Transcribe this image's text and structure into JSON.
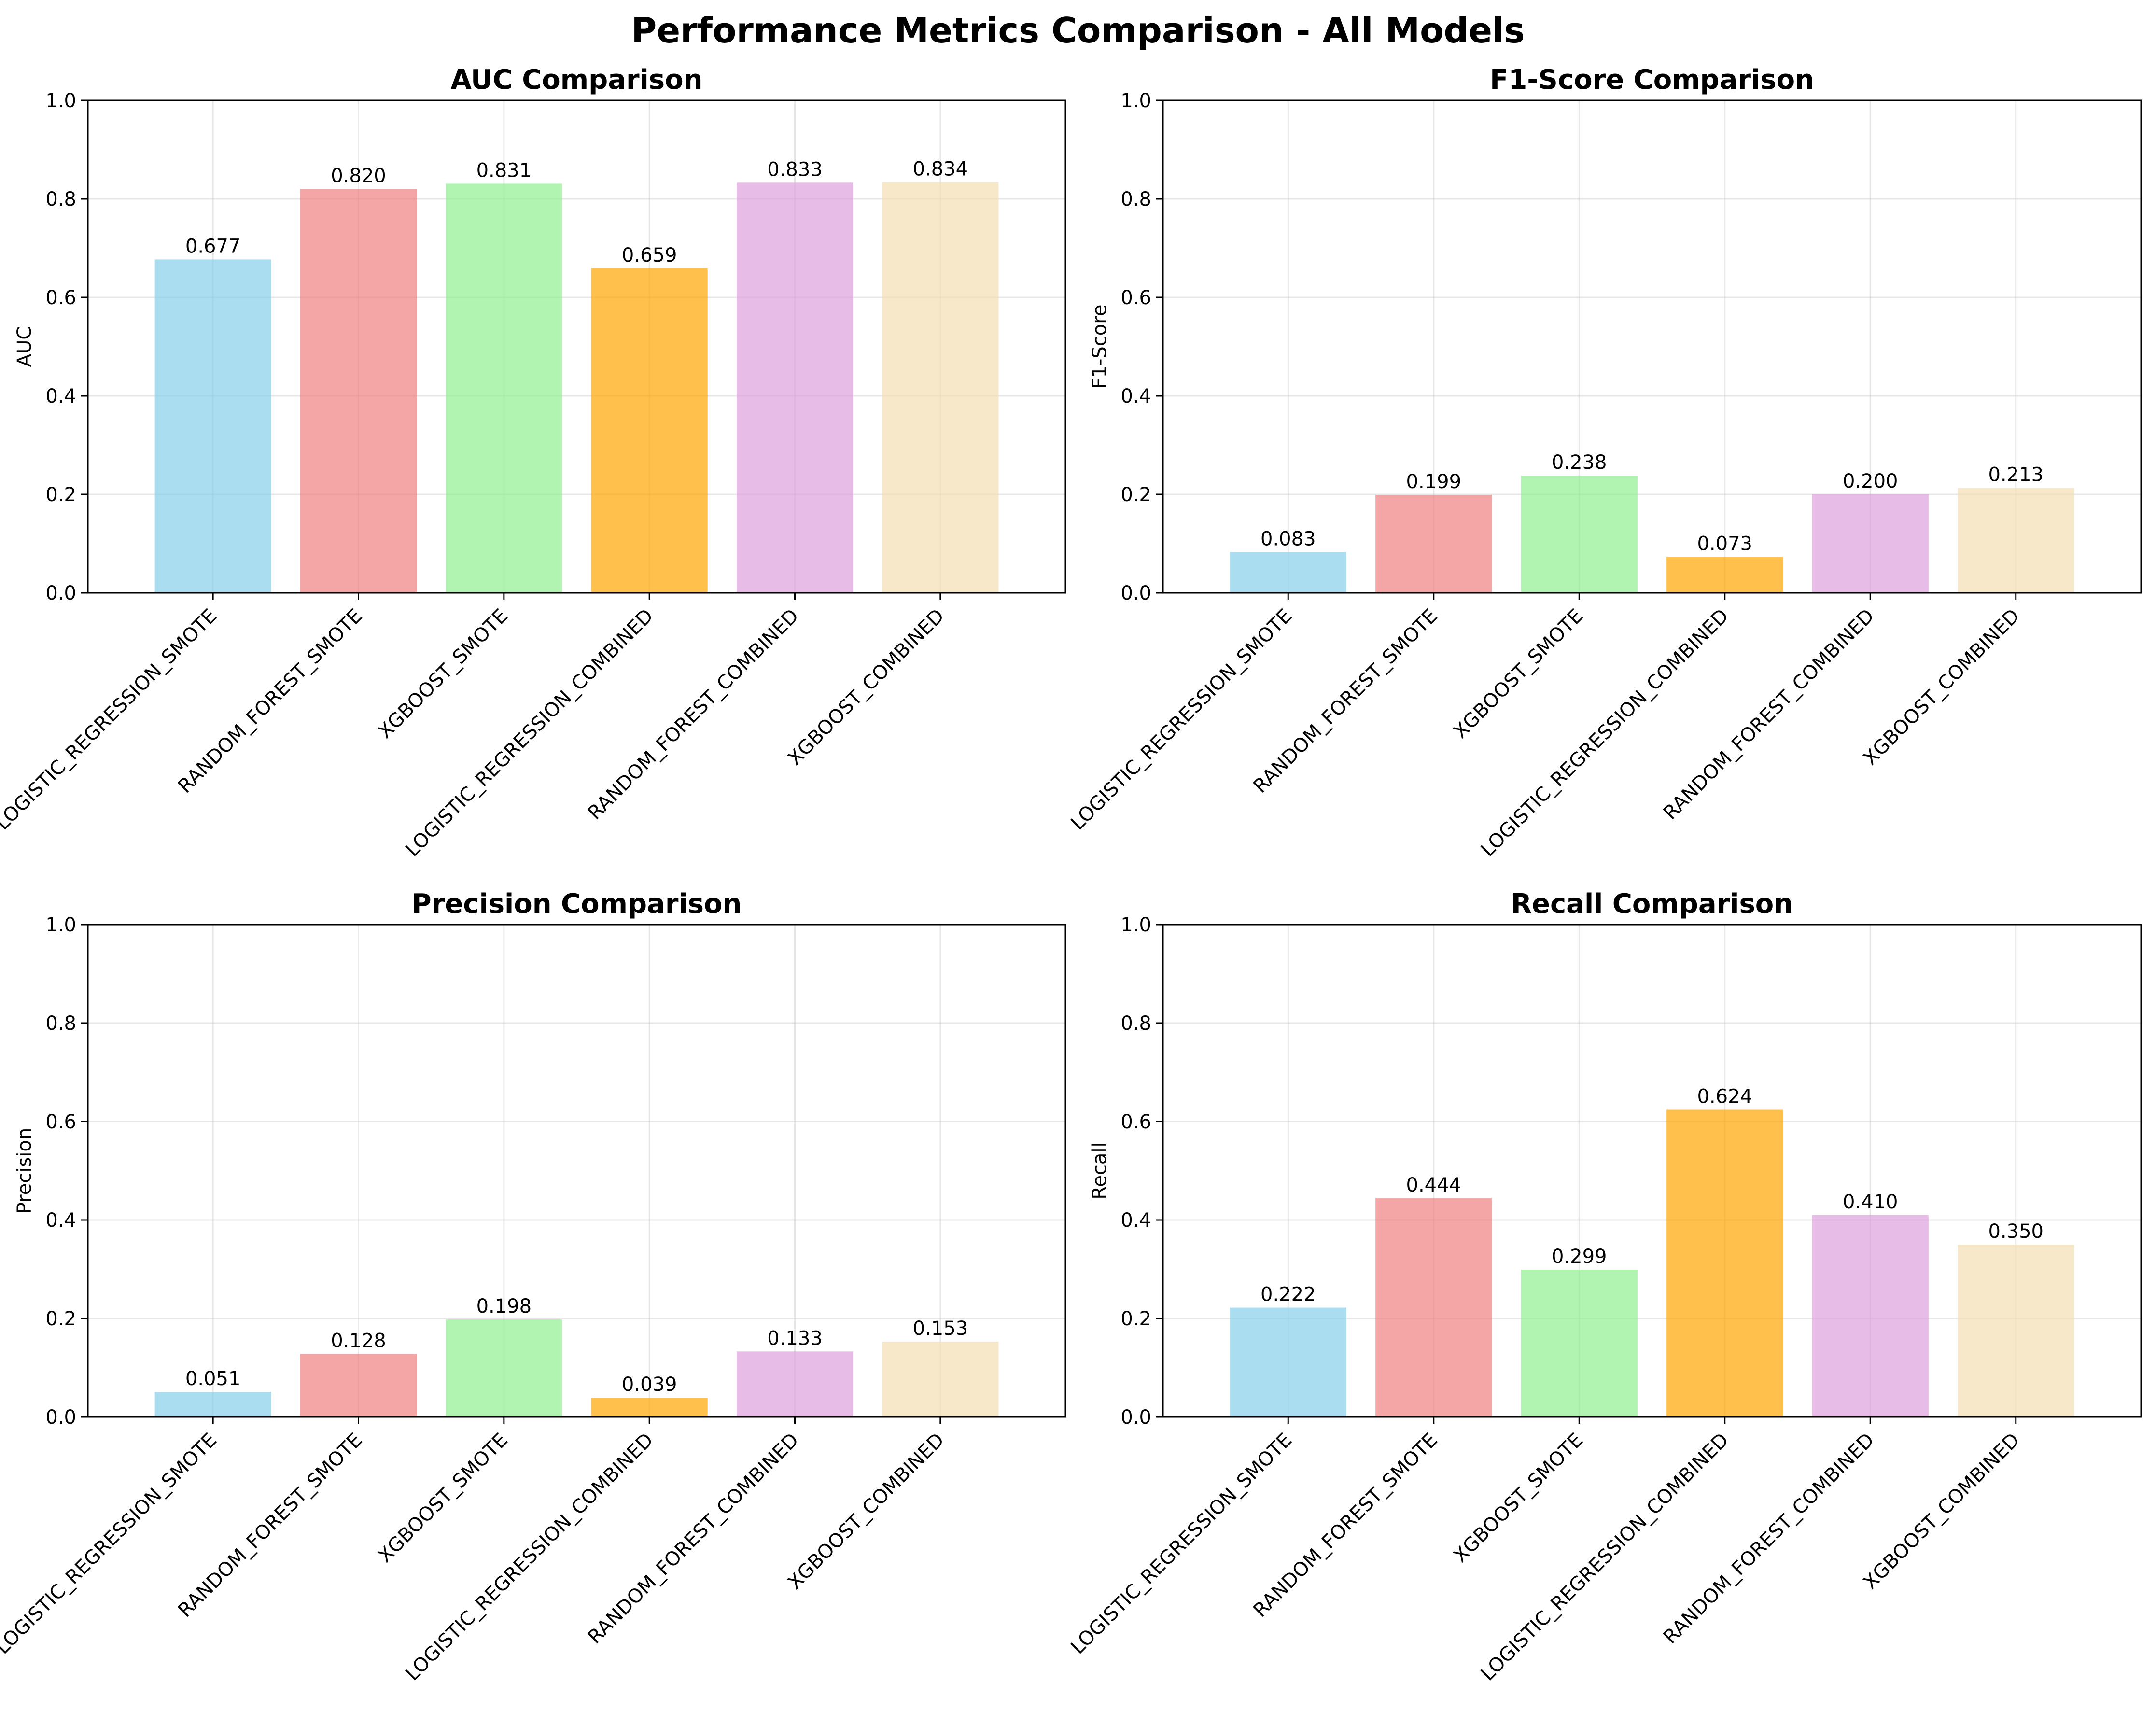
{
  "figure": {
    "title": "Performance Metrics Comparison - All Models"
  },
  "chart_data": [
    {
      "type": "bar",
      "title": "AUC Comparison",
      "xlabel": "",
      "ylabel": "AUC",
      "ylim": [
        0,
        1.0
      ],
      "yticks": [
        "0.0",
        "0.2",
        "0.4",
        "0.6",
        "0.8",
        "1.0"
      ],
      "grid": true,
      "categories": [
        "LOGISTIC_REGRESSION_SMOTE",
        "RANDOM_FOREST_SMOTE",
        "XGBOOST_SMOTE",
        "LOGISTIC_REGRESSION_COMBINED",
        "RANDOM_FOREST_COMBINED",
        "XGBOOST_COMBINED"
      ],
      "values": [
        0.677,
        0.82,
        0.831,
        0.659,
        0.833,
        0.834
      ],
      "data_labels": [
        "0.677",
        "0.820",
        "0.831",
        "0.659",
        "0.833",
        "0.834"
      ]
    },
    {
      "type": "bar",
      "title": "F1-Score Comparison",
      "xlabel": "",
      "ylabel": "F1-Score",
      "ylim": [
        0,
        1.0
      ],
      "yticks": [
        "0.0",
        "0.2",
        "0.4",
        "0.6",
        "0.8",
        "1.0"
      ],
      "grid": true,
      "categories": [
        "LOGISTIC_REGRESSION_SMOTE",
        "RANDOM_FOREST_SMOTE",
        "XGBOOST_SMOTE",
        "LOGISTIC_REGRESSION_COMBINED",
        "RANDOM_FOREST_COMBINED",
        "XGBOOST_COMBINED"
      ],
      "values": [
        0.083,
        0.199,
        0.238,
        0.073,
        0.2,
        0.213
      ],
      "data_labels": [
        "0.083",
        "0.199",
        "0.238",
        "0.073",
        "0.200",
        "0.213"
      ]
    },
    {
      "type": "bar",
      "title": "Precision Comparison",
      "xlabel": "",
      "ylabel": "Precision",
      "ylim": [
        0,
        1.0
      ],
      "yticks": [
        "0.0",
        "0.2",
        "0.4",
        "0.6",
        "0.8",
        "1.0"
      ],
      "grid": true,
      "categories": [
        "LOGISTIC_REGRESSION_SMOTE",
        "RANDOM_FOREST_SMOTE",
        "XGBOOST_SMOTE",
        "LOGISTIC_REGRESSION_COMBINED",
        "RANDOM_FOREST_COMBINED",
        "XGBOOST_COMBINED"
      ],
      "values": [
        0.051,
        0.128,
        0.198,
        0.039,
        0.133,
        0.153
      ],
      "data_labels": [
        "0.051",
        "0.128",
        "0.198",
        "0.039",
        "0.133",
        "0.153"
      ]
    },
    {
      "type": "bar",
      "title": "Recall Comparison",
      "xlabel": "",
      "ylabel": "Recall",
      "ylim": [
        0,
        1.0
      ],
      "yticks": [
        "0.0",
        "0.2",
        "0.4",
        "0.6",
        "0.8",
        "1.0"
      ],
      "grid": true,
      "categories": [
        "LOGISTIC_REGRESSION_SMOTE",
        "RANDOM_FOREST_SMOTE",
        "XGBOOST_SMOTE",
        "LOGISTIC_REGRESSION_COMBINED",
        "RANDOM_FOREST_COMBINED",
        "XGBOOST_COMBINED"
      ],
      "values": [
        0.222,
        0.444,
        0.299,
        0.624,
        0.41,
        0.35
      ],
      "data_labels": [
        "0.222",
        "0.444",
        "0.299",
        "0.624",
        "0.410",
        "0.350"
      ]
    }
  ],
  "colors": {
    "bars": [
      "#87CEEB",
      "#F08080",
      "#90EE90",
      "#FFA500",
      "#DDA0DD",
      "#F5DEB3"
    ],
    "bar_opacity": 0.7,
    "grid": "#b0b0b0",
    "axis": "#000000"
  }
}
